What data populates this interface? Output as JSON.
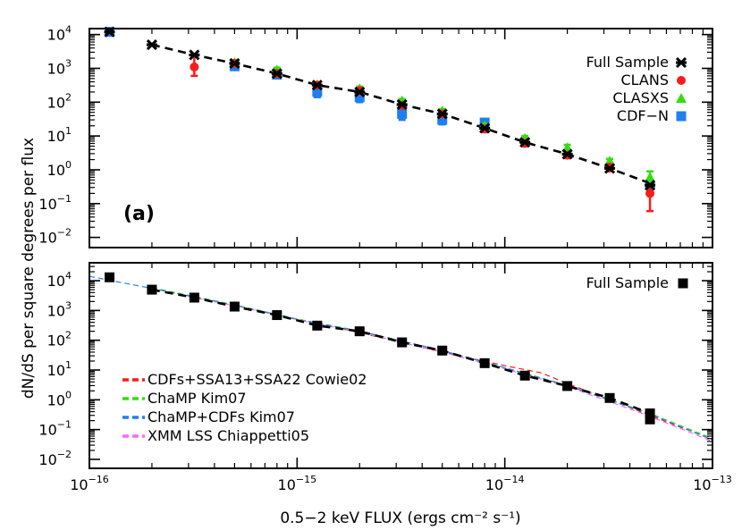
{
  "chart_data": [
    {
      "type": "scatter",
      "panel_tag": "(a)",
      "xscale": "log",
      "yscale": "log",
      "xlim": [
        1e-16,
        1e-13
      ],
      "ylim": [
        0.005,
        15000
      ],
      "ylabel": "dN/dS per square degrees per flux",
      "legend_position": "top-right",
      "series": [
        {
          "name": "Full Sample",
          "marker": "asterisk",
          "color": "#000000",
          "x": [
            1.25e-16,
            2e-16,
            3.2e-16,
            5e-16,
            8e-16,
            1.25e-15,
            2e-15,
            3.2e-15,
            5e-15,
            8e-15,
            1.25e-14,
            2e-14,
            3.2e-14,
            5e-14
          ],
          "y": [
            12000,
            5000,
            2500,
            1400,
            700,
            320,
            200,
            85,
            45,
            17,
            6.5,
            2.9,
            1.1,
            0.35
          ]
        },
        {
          "name": "CLANS",
          "marker": "circle",
          "color": "#ff1a1a",
          "x": [
            3.2e-16,
            5e-16,
            8e-16,
            1.25e-15,
            2e-15,
            3.2e-15,
            5e-15,
            8e-15,
            1.25e-14,
            2e-14,
            3.2e-14,
            5e-14
          ],
          "y": [
            1100,
            1400,
            700,
            320,
            220,
            80,
            45,
            16,
            6,
            2.7,
            1.2,
            0.2
          ],
          "err_low": [
            600,
            1200,
            620,
            270,
            190,
            70,
            40,
            13,
            5,
            2.2,
            0.9,
            0.06
          ],
          "err_high": [
            2200,
            1700,
            850,
            370,
            250,
            95,
            50,
            20,
            7.5,
            3.3,
            1.4,
            0.35
          ]
        },
        {
          "name": "CLASXS",
          "marker": "triangle",
          "color": "#33dd11",
          "x": [
            5e-16,
            8e-16,
            1.25e-15,
            2e-15,
            3.2e-15,
            5e-15,
            8e-15,
            1.25e-14,
            2e-14,
            3.2e-14,
            5e-14
          ],
          "y": [
            1500,
            900,
            330,
            250,
            110,
            55,
            20,
            8.5,
            4.5,
            1.8,
            0.6
          ],
          "err_low": [
            1300,
            780,
            290,
            215,
            95,
            47,
            17,
            7,
            3.6,
            1.5,
            0.25
          ],
          "err_high": [
            1750,
            1050,
            380,
            290,
            125,
            63,
            23,
            10,
            5.5,
            2.1,
            0.9
          ]
        },
        {
          "name": "CDF−N",
          "marker": "square",
          "color": "#1e7ff0",
          "x": [
            1.25e-16,
            5e-16,
            8e-16,
            1.25e-15,
            2e-15,
            3.2e-15,
            5e-15,
            8e-15,
            5e-14
          ],
          "y": [
            12000,
            1150,
            650,
            200,
            140,
            45,
            30,
            25,
            0.35
          ],
          "err_low": [
            11000,
            950,
            550,
            140,
            100,
            30,
            22,
            20,
            0.2
          ],
          "err_high": [
            13000,
            1350,
            750,
            270,
            190,
            60,
            40,
            30,
            0.5
          ]
        }
      ],
      "fit_line": {
        "style": "dashed",
        "color": "#000000",
        "x": [
          2e-16,
          3.2e-16,
          5e-16,
          8e-16,
          1.25e-15,
          2e-15,
          3.2e-15,
          5e-15,
          8e-15,
          1.25e-14,
          2e-14,
          3.2e-14,
          5e-14
        ],
        "y": [
          5000,
          2500,
          1400,
          700,
          320,
          200,
          85,
          45,
          17,
          6.5,
          2.9,
          1.1,
          0.4
        ]
      }
    },
    {
      "type": "scatter",
      "xscale": "log",
      "yscale": "log",
      "xlim": [
        1e-16,
        1e-13
      ],
      "ylim": [
        0.005,
        40000
      ],
      "xlabel": "0.5−2 keV FLUX (ergs cm⁻² s⁻¹)",
      "legend_position": "top-right / bottom-left",
      "series": [
        {
          "name": "Full Sample",
          "marker": "square",
          "color": "#000000",
          "x": [
            1.25e-16,
            2e-16,
            3.2e-16,
            5e-16,
            8e-16,
            1.25e-15,
            2e-15,
            3.2e-15,
            5e-15,
            8e-15,
            1.25e-14,
            2e-14,
            3.2e-14,
            5e-14,
            5e-14
          ],
          "y": [
            13000,
            5000,
            2700,
            1350,
            700,
            310,
            200,
            85,
            45,
            17,
            6.5,
            2.9,
            1.15,
            0.35,
            0.22
          ]
        }
      ],
      "fit_line": {
        "style": "dashed",
        "color": "#000000",
        "x": [
          2e-16,
          3.2e-16,
          5e-16,
          8e-16,
          1.25e-15,
          2e-15,
          3.2e-15,
          5e-15,
          8e-15,
          1.25e-14,
          2e-14,
          3.2e-14,
          5e-14
        ],
        "y": [
          5000,
          2700,
          1350,
          700,
          310,
          200,
          85,
          45,
          17,
          6.5,
          2.9,
          1.15,
          0.35
        ]
      },
      "models": [
        {
          "name": "CDFs+SSA13+SSA22 Cowie02",
          "color": "#ff1a1a",
          "x": [
            2e-16,
            5e-16,
            1e-15,
            2e-15,
            5e-15,
            1e-14,
            1.5e-14,
            2e-14,
            3e-14,
            5e-14,
            7e-14,
            1e-13
          ],
          "y": [
            5500,
            1500,
            500,
            180,
            40,
            14,
            8,
            3.5,
            1.2,
            0.3,
            0.12,
            0.05
          ]
        },
        {
          "name": "ChaMP Kim07",
          "color": "#33dd11",
          "x": [
            2e-16,
            5e-16,
            1e-15,
            2e-15,
            5e-15,
            1e-14,
            2e-14,
            5e-14,
            1e-13
          ],
          "y": [
            5800,
            1550,
            520,
            205,
            45,
            12,
            3.1,
            0.35,
            0.05
          ]
        },
        {
          "name": "ChaMP+CDFs Kim07",
          "color": "#1e7ff0",
          "x": [
            1e-16,
            2e-16,
            5e-16,
            1e-15,
            2e-15,
            5e-15,
            1e-14,
            2e-14,
            5e-14,
            1e-13
          ],
          "y": [
            14000,
            5500,
            1500,
            500,
            200,
            45,
            12,
            3,
            0.33,
            0.045
          ]
        },
        {
          "name": "XMM LSS Chiappetti05",
          "color": "#ff66ff",
          "x": [
            3e-16,
            5e-16,
            1e-15,
            2e-15,
            5e-15,
            1e-14,
            2e-14,
            5e-14,
            1e-13
          ],
          "y": [
            2900,
            1450,
            490,
            185,
            40,
            11,
            2.8,
            0.28,
            0.04
          ]
        }
      ]
    }
  ]
}
